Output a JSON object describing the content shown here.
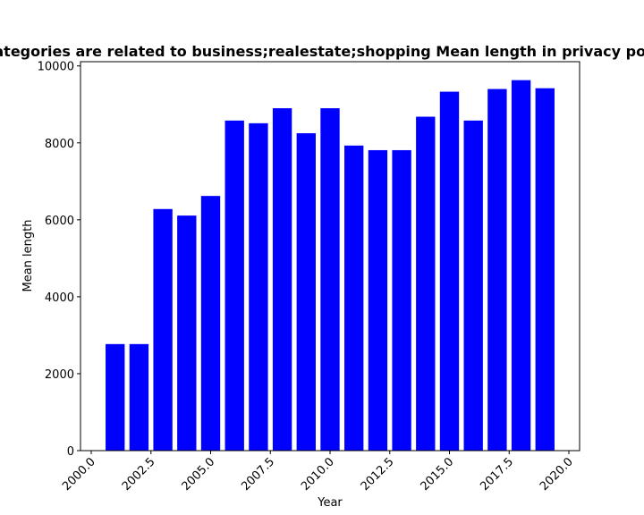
{
  "chart_data": {
    "type": "bar",
    "title": "Categories are related to business;realestate;shopping Mean length in privacy policies",
    "xlabel": "Year",
    "ylabel": "Mean length",
    "x": [
      2001,
      2002,
      2003,
      2004,
      2005,
      2006,
      2007,
      2008,
      2009,
      2010,
      2011,
      2012,
      2013,
      2014,
      2015,
      2016,
      2017,
      2018,
      2019
    ],
    "values": [
      2770,
      2770,
      6280,
      6110,
      6620,
      8580,
      8510,
      8900,
      8250,
      8900,
      7930,
      7810,
      7810,
      8680,
      9330,
      8580,
      9400,
      9630,
      9420
    ],
    "xlim": [
      1999.55,
      2020.45
    ],
    "ylim": [
      0,
      10110
    ],
    "xticks": [
      2000.0,
      2002.5,
      2005.0,
      2007.5,
      2010.0,
      2012.5,
      2015.0,
      2017.5,
      2020.0
    ],
    "xtick_labels": [
      "2000.0",
      "2002.5",
      "2005.0",
      "2007.5",
      "2010.0",
      "2012.5",
      "2015.0",
      "2017.5",
      "2020.0"
    ],
    "yticks": [
      0,
      2000,
      4000,
      6000,
      8000,
      10000
    ],
    "ytick_labels": [
      "0",
      "2000",
      "4000",
      "6000",
      "8000",
      "10000"
    ],
    "bar_width": 0.8,
    "bar_color": "#0000ff",
    "grid": false,
    "legend": "none"
  }
}
